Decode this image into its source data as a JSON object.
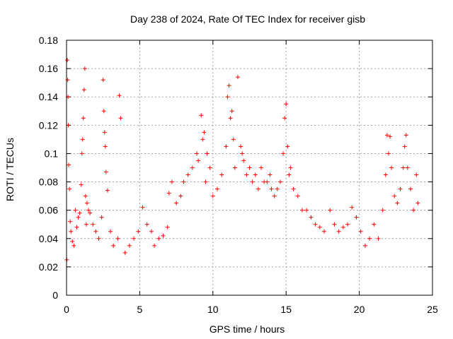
{
  "chart_data": {
    "type": "scatter",
    "title": "Day 238 of 2024, Rate Of TEC Index for receiver gisb",
    "xlabel": "GPS time / hours",
    "ylabel": "ROTI / TECUs",
    "xlim": [
      0,
      25
    ],
    "ylim": [
      0,
      0.18
    ],
    "x_ticks": [
      0,
      5,
      10,
      15,
      20,
      25
    ],
    "x_tick_labels": [
      "0",
      "5",
      "10",
      "15",
      "20",
      "25"
    ],
    "y_ticks": [
      0,
      0.02,
      0.04,
      0.06,
      0.08,
      0.1,
      0.12,
      0.14,
      0.16,
      0.18
    ],
    "y_tick_labels": [
      "0",
      "0.02",
      "0.04",
      "0.06",
      "0.08",
      "0.1",
      "0.12",
      "0.14",
      "0.16",
      "0.18"
    ],
    "grid": true,
    "marker": "+",
    "marker_color": "#ff0000",
    "series": [
      {
        "name": "ROTI",
        "x": [
          0.02,
          0.05,
          0.08,
          0.1,
          0.12,
          0.15,
          0.2,
          0.25,
          0.3,
          0.4,
          0.5,
          0.6,
          0.7,
          0.8,
          0.9,
          1.0,
          1.05,
          1.1,
          1.15,
          1.2,
          1.25,
          1.3,
          1.35,
          1.4,
          1.5,
          1.6,
          1.8,
          2.0,
          2.2,
          2.4,
          2.5,
          2.55,
          2.6,
          2.65,
          2.7,
          2.8,
          3.0,
          3.2,
          3.5,
          3.6,
          3.7,
          4.0,
          4.3,
          4.6,
          4.9,
          5.2,
          5.5,
          5.8,
          6.0,
          6.3,
          6.6,
          6.9,
          7.0,
          7.2,
          7.5,
          7.8,
          8.0,
          8.3,
          8.6,
          8.9,
          9.0,
          9.2,
          9.3,
          9.4,
          9.5,
          9.6,
          9.8,
          10.0,
          10.3,
          10.6,
          10.9,
          11.0,
          11.1,
          11.2,
          11.3,
          11.4,
          11.5,
          11.7,
          11.9,
          12.0,
          12.1,
          12.3,
          12.5,
          12.7,
          12.9,
          13.1,
          13.3,
          13.5,
          13.7,
          13.9,
          14.0,
          14.2,
          14.4,
          14.6,
          14.8,
          14.9,
          15.0,
          15.1,
          15.2,
          15.3,
          15.5,
          15.8,
          16.1,
          16.4,
          16.7,
          17.0,
          17.3,
          17.6,
          18.0,
          18.3,
          18.6,
          18.9,
          19.2,
          19.5,
          19.8,
          20.1,
          20.4,
          20.7,
          21.0,
          21.3,
          21.6,
          21.8,
          21.9,
          22.0,
          22.1,
          22.2,
          22.4,
          22.6,
          22.8,
          23.0,
          23.1,
          23.2,
          23.3,
          23.5,
          23.7,
          23.9,
          24.0
        ],
        "y": [
          0.025,
          0.166,
          0.152,
          0.14,
          0.12,
          0.092,
          0.075,
          0.052,
          0.045,
          0.038,
          0.035,
          0.06,
          0.048,
          0.055,
          0.058,
          0.078,
          0.1,
          0.11,
          0.125,
          0.145,
          0.16,
          0.07,
          0.05,
          0.065,
          0.06,
          0.058,
          0.05,
          0.045,
          0.04,
          0.055,
          0.152,
          0.13,
          0.115,
          0.105,
          0.087,
          0.074,
          0.045,
          0.035,
          0.04,
          0.141,
          0.125,
          0.03,
          0.035,
          0.04,
          0.045,
          0.062,
          0.05,
          0.045,
          0.035,
          0.04,
          0.042,
          0.048,
          0.072,
          0.08,
          0.065,
          0.07,
          0.08,
          0.085,
          0.09,
          0.1,
          0.095,
          0.127,
          0.11,
          0.115,
          0.08,
          0.1,
          0.09,
          0.07,
          0.075,
          0.085,
          0.105,
          0.14,
          0.148,
          0.125,
          0.13,
          0.11,
          0.09,
          0.154,
          0.105,
          0.1,
          0.095,
          0.085,
          0.09,
          0.08,
          0.085,
          0.075,
          0.09,
          0.08,
          0.08,
          0.085,
          0.075,
          0.07,
          0.075,
          0.08,
          0.1,
          0.125,
          0.135,
          0.105,
          0.085,
          0.09,
          0.075,
          0.07,
          0.06,
          0.06,
          0.055,
          0.05,
          0.048,
          0.045,
          0.06,
          0.05,
          0.045,
          0.048,
          0.05,
          0.062,
          0.055,
          0.045,
          0.035,
          0.04,
          0.05,
          0.04,
          0.06,
          0.085,
          0.113,
          0.1,
          0.112,
          0.09,
          0.07,
          0.065,
          0.075,
          0.09,
          0.105,
          0.113,
          0.09,
          0.075,
          0.06,
          0.085,
          0.065
        ]
      }
    ]
  }
}
